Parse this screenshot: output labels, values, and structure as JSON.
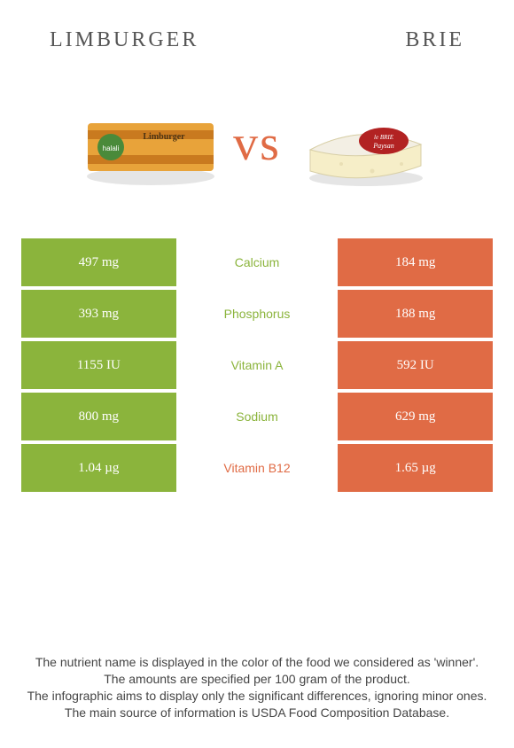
{
  "titles": {
    "left": "Limburger",
    "right": "Brie"
  },
  "vs_label": "vs",
  "colors": {
    "green": "#8bb43c",
    "orange": "#e06b45",
    "limburger_pack": "#e8a33a",
    "limburger_label": "#4a8a3a",
    "limburger_stripe": "#c97a1f",
    "brie_rind": "#f3efe4",
    "brie_paste": "#f6eec8",
    "brie_label": "#b22222"
  },
  "rows": [
    {
      "nutrient": "Calcium",
      "left": "497 mg",
      "right": "184 mg",
      "winner": "left"
    },
    {
      "nutrient": "Phosphorus",
      "left": "393 mg",
      "right": "188 mg",
      "winner": "left"
    },
    {
      "nutrient": "Vitamin A",
      "left": "1155 IU",
      "right": "592 IU",
      "winner": "left"
    },
    {
      "nutrient": "Sodium",
      "left": "800 mg",
      "right": "629 mg",
      "winner": "left"
    },
    {
      "nutrient": "Vitamin B12",
      "left": "1.04 µg",
      "right": "1.65 µg",
      "winner": "right"
    }
  ],
  "disclaimer": [
    "The nutrient name is displayed in the color of the food we considered as 'winner'.",
    "The amounts are specified per 100 gram of the product.",
    "The infographic aims to display only the significant differences, ignoring minor ones.",
    "The main source of information is USDA Food Composition Database."
  ]
}
